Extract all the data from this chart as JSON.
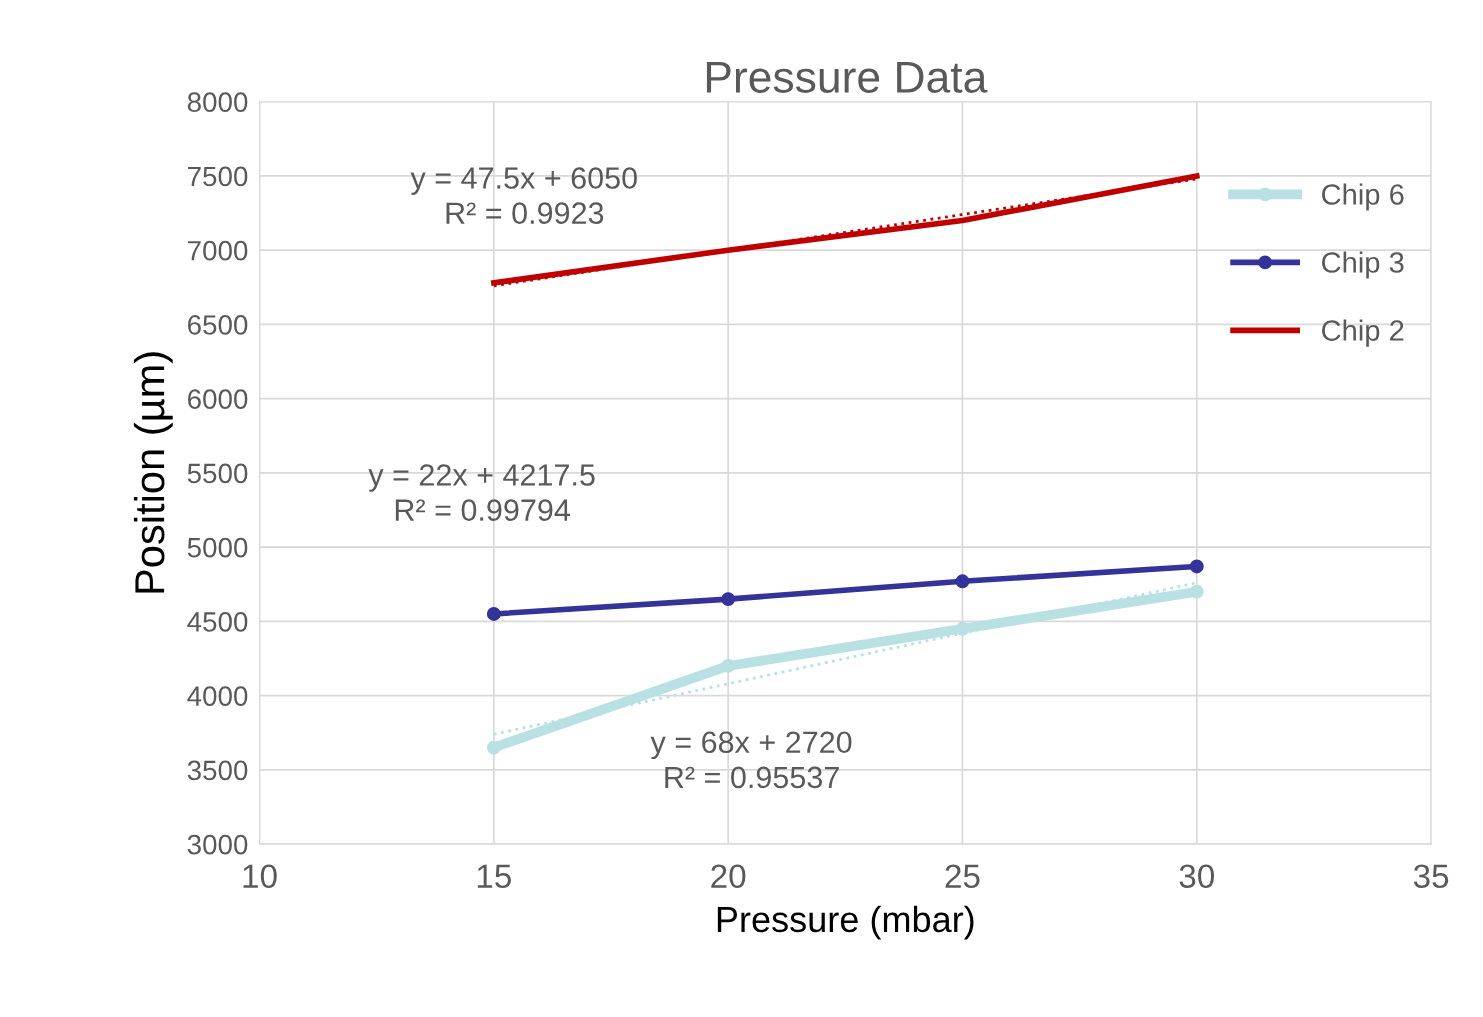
{
  "chart_data": {
    "type": "line",
    "title": "Pressure Data",
    "xlabel": "Pressure (mbar)",
    "ylabel": "Position (µm)",
    "x": [
      15,
      20,
      25,
      30
    ],
    "series": [
      {
        "name": "Chip 6",
        "color": "#b9e0e2",
        "values": [
          3650,
          4200,
          4450,
          4700
        ],
        "marker": "circle"
      },
      {
        "name": "Chip 3",
        "color": "#333399",
        "values": [
          4550,
          4650,
          4770,
          4870
        ],
        "marker": "circle"
      },
      {
        "name": "Chip 2",
        "color": "#c00000",
        "values": [
          6780,
          7000,
          7200,
          7500
        ],
        "marker": "none"
      },
      {
        "color": "#b9e0e2",
        "values": [
          3740,
          4080,
          4420,
          4760
        ],
        "line_style": "dotted",
        "marker": "none"
      },
      {
        "color": "#c00000",
        "values": [
          6760,
          7000,
          7240,
          7480
        ],
        "line_style": "dotted",
        "marker": "none"
      }
    ],
    "xlim": [
      10,
      35
    ],
    "xticks": [
      10,
      15,
      20,
      25,
      30,
      35
    ],
    "ylim": [
      3000,
      8000
    ],
    "yticks": [
      3000,
      3500,
      4000,
      4500,
      5000,
      5500,
      6000,
      6500,
      7000,
      7500,
      8000
    ],
    "grid": true,
    "legend": "right",
    "annotations": [
      "y = 47.5x + 6050\nR² = 0.9923",
      "y = 22x + 4217.5\nR² = 0.99794",
      "y = 68x + 2720\nR² = 0.95537"
    ]
  }
}
